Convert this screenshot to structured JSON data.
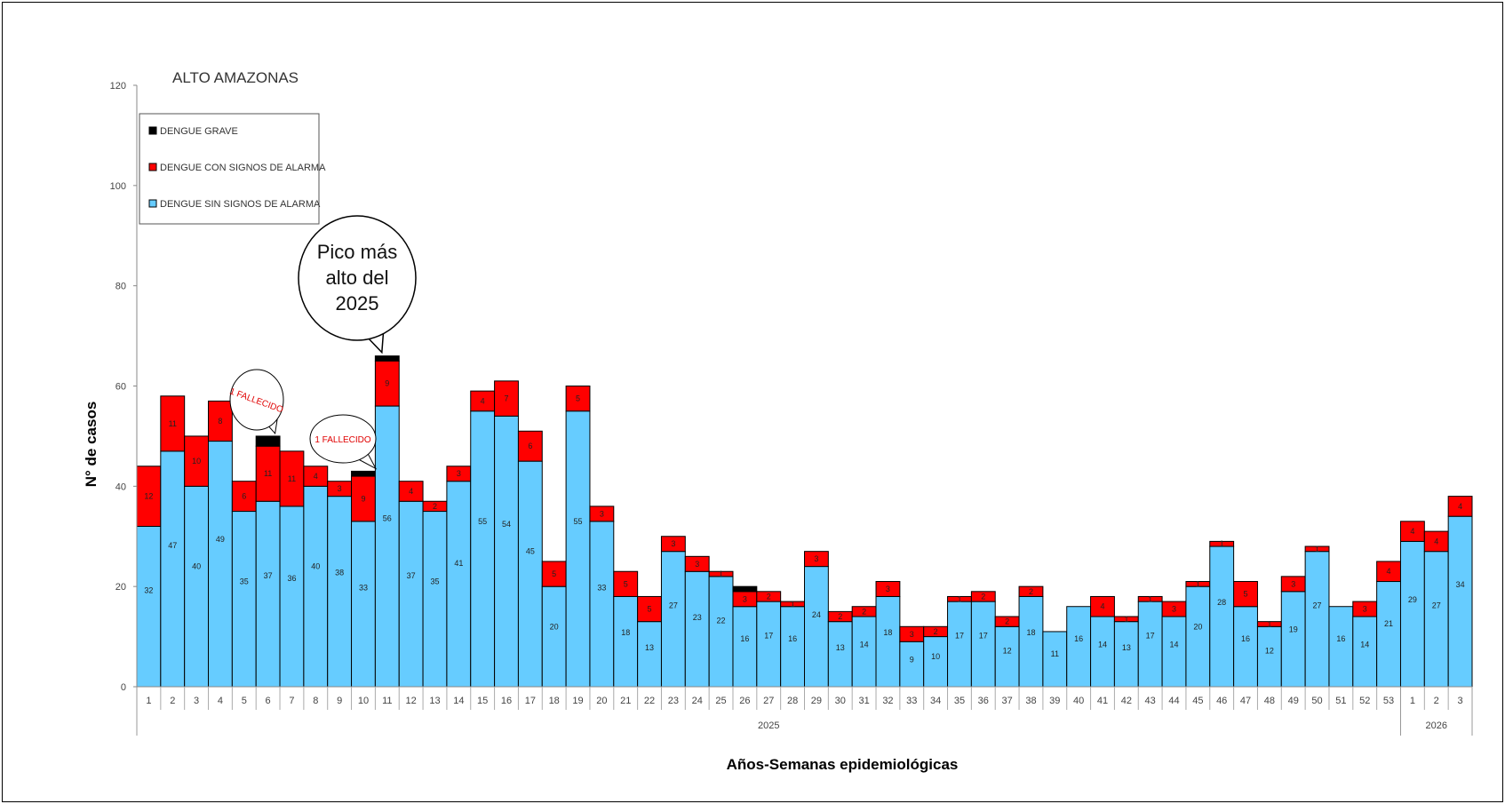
{
  "chart_data": {
    "type": "bar",
    "stacked": true,
    "title": "ALTO AMAZONAS",
    "xlabel": "Años-Semanas epidemiológicas",
    "ylabel": "N° de casos",
    "ylim": [
      0,
      120
    ],
    "yticks": [
      0,
      20,
      40,
      60,
      80,
      100,
      120
    ],
    "grid": false,
    "legend_position": "top-left",
    "categories": [
      "1",
      "2",
      "3",
      "4",
      "5",
      "6",
      "7",
      "8",
      "9",
      "10",
      "11",
      "12",
      "13",
      "14",
      "15",
      "16",
      "17",
      "18",
      "19",
      "20",
      "21",
      "22",
      "23",
      "24",
      "25",
      "26",
      "27",
      "28",
      "29",
      "30",
      "31",
      "32",
      "33",
      "34",
      "35",
      "36",
      "37",
      "38",
      "39",
      "40",
      "41",
      "42",
      "43",
      "44",
      "45",
      "46",
      "47",
      "48",
      "49",
      "50",
      "51",
      "52",
      "53",
      "1",
      "2",
      "3"
    ],
    "year_groups": [
      {
        "label": "2025",
        "count": 53
      },
      {
        "label": "2026",
        "count": 3
      }
    ],
    "series": [
      {
        "name": "DENGUE SIN SIGNOS DE ALARMA",
        "color": "#66ccff",
        "values": [
          32,
          47,
          40,
          49,
          35,
          37,
          36,
          40,
          38,
          33,
          56,
          37,
          35,
          41,
          55,
          54,
          45,
          20,
          55,
          33,
          18,
          13,
          27,
          23,
          22,
          16,
          17,
          16,
          24,
          13,
          14,
          18,
          9,
          10,
          17,
          17,
          12,
          18,
          11,
          16,
          14,
          13,
          17,
          14,
          20,
          28,
          16,
          12,
          19,
          27,
          16,
          14,
          21,
          29,
          27,
          34
        ]
      },
      {
        "name": "DENGUE CON SIGNOS DE ALARMA",
        "color": "#ff0000",
        "values": [
          12,
          11,
          10,
          8,
          6,
          11,
          11,
          4,
          3,
          9,
          9,
          4,
          2,
          3,
          4,
          7,
          6,
          5,
          5,
          3,
          5,
          5,
          3,
          3,
          1,
          3,
          2,
          1,
          3,
          2,
          2,
          3,
          3,
          2,
          1,
          2,
          2,
          2,
          0,
          0,
          4,
          1,
          1,
          3,
          1,
          1,
          5,
          1,
          3,
          1,
          0,
          3,
          4,
          4,
          4,
          4
        ]
      },
      {
        "name": "DENGUE GRAVE",
        "color": "#000000",
        "values": [
          0,
          0,
          0,
          0,
          0,
          2,
          0,
          0,
          0,
          1,
          1,
          0,
          0,
          0,
          0,
          0,
          0,
          0,
          0,
          0,
          0,
          0,
          0,
          0,
          0,
          1,
          0,
          0,
          0,
          0,
          0,
          0,
          0,
          0,
          0,
          0,
          0,
          0,
          0,
          0,
          0,
          0,
          0,
          0,
          0,
          0,
          0,
          0,
          0,
          0,
          0,
          0,
          0,
          0,
          0,
          0
        ]
      }
    ],
    "annotations": [
      {
        "text": "Pico más alto del 2025",
        "category_index": 10
      },
      {
        "text": "1 FALLECIDO",
        "category_index": 5
      },
      {
        "text": "1 FALLECIDO",
        "category_index": 9
      }
    ]
  }
}
